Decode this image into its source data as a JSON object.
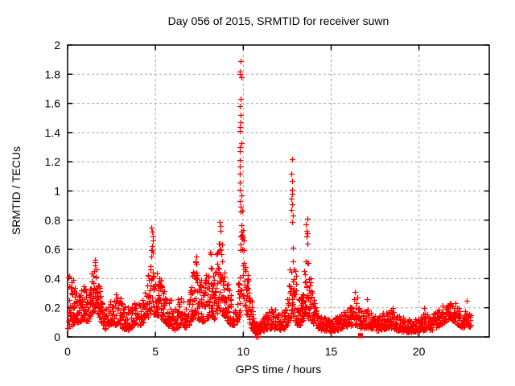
{
  "chart_data": {
    "type": "scatter",
    "title": "Day 056 of 2015, SRMTID for receiver suwn",
    "xlabel": "GPS time / hours",
    "ylabel": "SRMTID / TECUs",
    "xlim": [
      0,
      24
    ],
    "ylim": [
      0,
      2
    ],
    "xticks": [
      {
        "v": 0,
        "label": "0"
      },
      {
        "v": 5,
        "label": "5"
      },
      {
        "v": 10,
        "label": "10"
      },
      {
        "v": 15,
        "label": "15"
      },
      {
        "v": 20,
        "label": "20"
      }
    ],
    "yticks": [
      {
        "v": 0,
        "label": "0"
      },
      {
        "v": 0.2,
        "label": "0.2"
      },
      {
        "v": 0.4,
        "label": "0.4"
      },
      {
        "v": 0.6,
        "label": "0.6"
      },
      {
        "v": 0.8,
        "label": "0.8"
      },
      {
        "v": 1,
        "label": "1"
      },
      {
        "v": 1.2,
        "label": "1.2"
      },
      {
        "v": 1.4,
        "label": "1.4"
      },
      {
        "v": 1.6,
        "label": "1.6"
      },
      {
        "v": 1.8,
        "label": "1.8"
      },
      {
        "v": 2,
        "label": "2"
      }
    ],
    "grid": true,
    "legend": null,
    "marker": {
      "shape": "plus",
      "color": "#ff0000",
      "size": 7
    },
    "grid_color": "#a6a6a6",
    "border_color": "#000000",
    "series_name": "SRMTID",
    "envelope": [
      [
        0.02,
        0.06,
        0.42
      ],
      [
        0.3,
        0.08,
        0.4
      ],
      [
        0.6,
        0.1,
        0.32
      ],
      [
        0.9,
        0.12,
        0.36
      ],
      [
        1.15,
        0.1,
        0.3
      ],
      [
        1.35,
        0.14,
        0.45
      ],
      [
        1.55,
        0.18,
        0.54
      ],
      [
        1.75,
        0.15,
        0.45
      ],
      [
        1.95,
        0.08,
        0.3
      ],
      [
        2.15,
        0.05,
        0.2
      ],
      [
        2.45,
        0.08,
        0.28
      ],
      [
        2.8,
        0.08,
        0.3
      ],
      [
        3.1,
        0.06,
        0.25
      ],
      [
        3.45,
        0.05,
        0.2
      ],
      [
        3.8,
        0.08,
        0.28
      ],
      [
        4.15,
        0.08,
        0.26
      ],
      [
        4.45,
        0.1,
        0.32
      ],
      [
        4.65,
        0.14,
        0.5
      ],
      [
        4.8,
        0.18,
        0.74
      ],
      [
        4.95,
        0.15,
        0.5
      ],
      [
        5.2,
        0.14,
        0.42
      ],
      [
        5.5,
        0.1,
        0.38
      ],
      [
        5.8,
        0.07,
        0.3
      ],
      [
        6.1,
        0.05,
        0.22
      ],
      [
        6.45,
        0.08,
        0.3
      ],
      [
        6.75,
        0.06,
        0.24
      ],
      [
        7.0,
        0.1,
        0.35
      ],
      [
        7.2,
        0.14,
        0.55
      ],
      [
        7.45,
        0.12,
        0.48
      ],
      [
        7.7,
        0.1,
        0.35
      ],
      [
        8.0,
        0.13,
        0.5
      ],
      [
        8.15,
        0.15,
        0.62
      ],
      [
        8.35,
        0.12,
        0.45
      ],
      [
        8.55,
        0.18,
        0.7
      ],
      [
        8.7,
        0.18,
        0.78
      ],
      [
        8.9,
        0.14,
        0.55
      ],
      [
        9.1,
        0.1,
        0.38
      ],
      [
        9.35,
        0.08,
        0.28
      ],
      [
        9.6,
        0.08,
        0.26
      ],
      [
        9.8,
        0.15,
        0.55
      ],
      [
        9.9,
        0.25,
        0.95
      ],
      [
        10.0,
        0.25,
        0.85
      ],
      [
        10.15,
        0.18,
        0.55
      ],
      [
        10.35,
        0.1,
        0.4
      ],
      [
        10.55,
        0.03,
        0.18
      ],
      [
        10.8,
        0.01,
        0.1
      ],
      [
        11.05,
        0.04,
        0.14
      ],
      [
        11.35,
        0.05,
        0.18
      ],
      [
        11.65,
        0.06,
        0.22
      ],
      [
        11.95,
        0.05,
        0.18
      ],
      [
        12.25,
        0.05,
        0.2
      ],
      [
        12.5,
        0.08,
        0.25
      ],
      [
        12.65,
        0.12,
        0.5
      ],
      [
        12.78,
        0.15,
        0.75
      ],
      [
        12.9,
        0.12,
        0.55
      ],
      [
        13.05,
        0.08,
        0.35
      ],
      [
        13.25,
        0.08,
        0.28
      ],
      [
        13.45,
        0.12,
        0.4
      ],
      [
        13.6,
        0.15,
        0.65
      ],
      [
        13.72,
        0.12,
        0.5
      ],
      [
        13.9,
        0.1,
        0.35
      ],
      [
        14.1,
        0.07,
        0.25
      ],
      [
        14.4,
        0.05,
        0.18
      ],
      [
        14.75,
        0.04,
        0.15
      ],
      [
        15.1,
        0.04,
        0.14
      ],
      [
        15.5,
        0.05,
        0.16
      ],
      [
        15.85,
        0.06,
        0.18
      ],
      [
        16.15,
        0.08,
        0.26
      ],
      [
        16.4,
        0.08,
        0.3
      ],
      [
        16.65,
        0.06,
        0.22
      ],
      [
        16.95,
        0.06,
        0.24
      ],
      [
        17.2,
        0.05,
        0.2
      ],
      [
        17.55,
        0.04,
        0.16
      ],
      [
        17.9,
        0.05,
        0.17
      ],
      [
        18.25,
        0.06,
        0.2
      ],
      [
        18.6,
        0.05,
        0.18
      ],
      [
        18.95,
        0.04,
        0.16
      ],
      [
        19.3,
        0.03,
        0.13
      ],
      [
        19.7,
        0.03,
        0.12
      ],
      [
        20.1,
        0.04,
        0.14
      ],
      [
        20.35,
        0.05,
        0.18
      ],
      [
        20.7,
        0.05,
        0.15
      ],
      [
        21.1,
        0.07,
        0.19
      ],
      [
        21.5,
        0.1,
        0.24
      ],
      [
        21.85,
        0.12,
        0.27
      ],
      [
        22.15,
        0.09,
        0.22
      ],
      [
        22.45,
        0.06,
        0.16
      ],
      [
        22.7,
        0.07,
        0.19
      ],
      [
        22.95,
        0.07,
        0.16
      ]
    ],
    "spikes": [
      {
        "x": 9.85,
        "jitter": 0.06,
        "ys": [
          1.89,
          1.82,
          1.8,
          1.78,
          1.63,
          1.58,
          1.52,
          1.47,
          1.44,
          1.41,
          1.33,
          1.3,
          1.27,
          1.21,
          1.17,
          1.12,
          1.06,
          1.01,
          0.97,
          0.93,
          0.89,
          0.86
        ]
      },
      {
        "x": 12.78,
        "jitter": 0.05,
        "ys": [
          1.22,
          1.12,
          1.07,
          1.01,
          0.98,
          0.95,
          0.91,
          0.87,
          0.83,
          0.79
        ]
      },
      {
        "x": 13.62,
        "jitter": 0.05,
        "ys": [
          0.81,
          0.77,
          0.73,
          0.71,
          0.69,
          0.64
        ]
      },
      {
        "x": 4.82,
        "jitter": 0.05,
        "ys": [
          0.75,
          0.72,
          0.69,
          0.66,
          0.62,
          0.58
        ]
      },
      {
        "x": 8.68,
        "jitter": 0.05,
        "ys": [
          0.79,
          0.76,
          0.73
        ]
      },
      {
        "x": 1.58,
        "jitter": 0.07,
        "ys": [
          0.53,
          0.51,
          0.49
        ]
      },
      {
        "x": 7.25,
        "jitter": 0.06,
        "ys": [
          0.55,
          0.52
        ]
      }
    ],
    "extra_points": [
      [
        10.72,
        0.005
      ],
      [
        10.8,
        0.0
      ],
      [
        22.73,
        0.25
      ],
      [
        0.1,
        0.42
      ],
      [
        16.35,
        0.31
      ],
      [
        17.02,
        0.26
      ],
      [
        18.5,
        0.2
      ],
      [
        20.3,
        0.2
      ]
    ],
    "square_blob": [
      16.67,
      0.01
    ],
    "render_hints": {
      "seed": 20150561,
      "dt": 0.016
    }
  }
}
